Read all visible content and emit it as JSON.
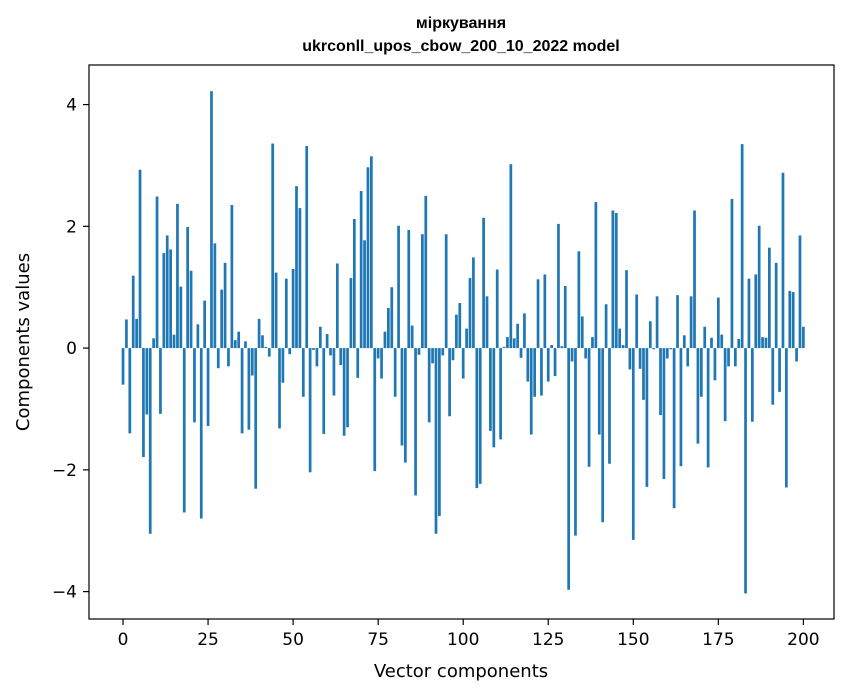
{
  "chart_data": {
    "type": "bar",
    "title": "міркування",
    "subtitle": "ukrconll_upos_cbow_200_10_2022 model",
    "xlabel": "Vector components",
    "ylabel": "Components values",
    "xlim": [
      -10,
      209
    ],
    "ylim": [
      -4.45,
      4.65
    ],
    "x_ticks": [
      0,
      25,
      50,
      75,
      100,
      125,
      150,
      175,
      200
    ],
    "y_ticks": [
      -4,
      -2,
      0,
      2,
      4
    ],
    "x_tick_labels": [
      "0",
      "25",
      "50",
      "75",
      "100",
      "125",
      "150",
      "175",
      "200"
    ],
    "y_tick_labels": [
      "−4",
      "−2",
      "0",
      "2",
      "4"
    ],
    "grid": false,
    "bar_color": "#1f77b4",
    "values": [
      -0.6,
      0.47,
      -1.4,
      1.19,
      0.48,
      2.93,
      -1.79,
      -1.09,
      -3.05,
      0.16,
      2.49,
      -1.08,
      1.56,
      1.85,
      1.62,
      0.22,
      2.37,
      1.01,
      -2.7,
      1.99,
      1.27,
      -1.22,
      0.39,
      -2.8,
      0.78,
      -1.28,
      4.22,
      1.72,
      -0.33,
      0.96,
      1.4,
      -0.3,
      2.35,
      0.13,
      0.27,
      -1.4,
      0.11,
      -1.34,
      -0.45,
      -2.31,
      0.48,
      0.21,
      0.02,
      -0.14,
      3.36,
      1.24,
      -1.32,
      -0.57,
      1.14,
      -0.1,
      1.3,
      2.66,
      2.3,
      -0.8,
      3.32,
      -2.04,
      -0.03,
      -0.3,
      0.35,
      -1.41,
      0.23,
      -0.12,
      -0.78,
      1.39,
      -0.28,
      -1.44,
      -1.3,
      1.15,
      2.12,
      -0.49,
      2.58,
      1.77,
      2.97,
      3.15,
      -2.02,
      -0.17,
      -0.5,
      0.27,
      0.66,
      1.0,
      -0.8,
      2.01,
      -1.6,
      -1.88,
      1.94,
      0.37,
      -2.42,
      -0.11,
      1.87,
      2.5,
      -1.22,
      -0.25,
      -3.05,
      -2.76,
      -0.12,
      1.87,
      -1.12,
      -0.2,
      0.55,
      0.74,
      -0.5,
      0.32,
      1.15,
      1.49,
      -2.3,
      -2.23,
      2.14,
      0.85,
      -1.36,
      -1.63,
      1.29,
      -1.5,
      0.02,
      0.18,
      3.02,
      0.16,
      0.4,
      -0.16,
      0.57,
      -0.55,
      -1.42,
      -0.8,
      1.13,
      -0.78,
      1.21,
      -0.55,
      0.05,
      -0.46,
      2.04,
      0.03,
      1.02,
      -3.97,
      -0.22,
      -3.08,
      1.59,
      0.52,
      -0.17,
      -1.95,
      0.18,
      2.4,
      -1.42,
      -2.86,
      0.72,
      -1.9,
      2.26,
      2.22,
      0.32,
      0.05,
      1.28,
      -0.35,
      -3.15,
      0.88,
      -0.34,
      -0.85,
      -2.28,
      0.44,
      -0.02,
      0.85,
      -1.1,
      -2.15,
      -0.17,
      -0.02,
      -2.63,
      0.87,
      -1.94,
      0.21,
      -0.3,
      0.85,
      2.26,
      -1.57,
      -0.8,
      0.35,
      -1.96,
      0.17,
      -0.53,
      0.83,
      0.22,
      -1.2,
      -0.3,
      2.45,
      -0.3,
      0.15,
      3.35,
      -4.03,
      1.14,
      -1.21,
      1.21,
      2.01,
      0.18,
      0.17,
      1.65,
      -0.93,
      1.4,
      -0.72,
      2.88,
      -2.29,
      0.94,
      0.92,
      -0.22,
      1.85,
      0.35
    ]
  }
}
